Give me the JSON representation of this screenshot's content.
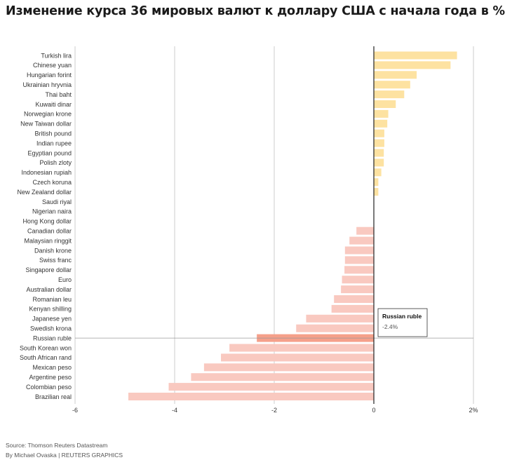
{
  "title": "Изменение курса 36 мировых валют к доллару США с начала года в %",
  "footer": {
    "source": "Source: Thomson Reuters Datastream",
    "credit": "By Michael Ovaska | REUTERS GRAPHICS"
  },
  "colors": {
    "positive": "#fde2a1",
    "negative": "#f9c9c0",
    "highlight": "#f5a08a",
    "zero_line": "#222222",
    "grid": "#cccccc"
  },
  "chart_data": {
    "type": "bar",
    "orientation": "horizontal",
    "unit": "%",
    "xlim": [
      -6,
      2
    ],
    "xticks": [
      -6,
      -4,
      -2,
      0,
      2
    ],
    "xtick_labels": [
      "-6",
      "-4",
      "-2",
      "0",
      "2%"
    ],
    "grid": true,
    "categories": [
      "Turkish lira",
      "Chinese yuan",
      "Hungarian forint",
      "Ukrainian hryvnia",
      "Thai baht",
      "Kuwaiti dinar",
      "Norwegian krone",
      "New Taiwan dollar",
      "British pound",
      "Indian rupee",
      "Egyptian pound",
      "Polish zloty",
      "Indonesian rupiah",
      "Czech koruna",
      "New Zealand dollar",
      "Saudi riyal",
      "Nigerian naira",
      "Hong Kong dollar",
      "Canadian dollar",
      "Malaysian ringgit",
      "Danish krone",
      "Swiss franc",
      "Singapore dollar",
      "Euro",
      "Australian dollar",
      "Romanian leu",
      "Kenyan shilling",
      "Japanese yen",
      "Swedish krona",
      "Russian ruble",
      "South Korean won",
      "South African rand",
      "Mexican peso",
      "Argentine peso",
      "Colombian peso",
      "Brazilian real"
    ],
    "values": [
      1.67,
      1.54,
      0.86,
      0.73,
      0.61,
      0.44,
      0.29,
      0.27,
      0.21,
      0.21,
      0.2,
      0.2,
      0.15,
      0.09,
      0.09,
      0.0,
      0.0,
      0.0,
      -0.35,
      -0.49,
      -0.58,
      -0.58,
      -0.59,
      -0.64,
      -0.66,
      -0.8,
      -0.85,
      -1.36,
      -1.56,
      -2.35,
      -2.9,
      -3.07,
      -3.41,
      -3.67,
      -4.12,
      -4.93
    ],
    "highlight": {
      "category": "Russian ruble",
      "label": "Russian ruble",
      "value_label": "-2.4%"
    }
  }
}
